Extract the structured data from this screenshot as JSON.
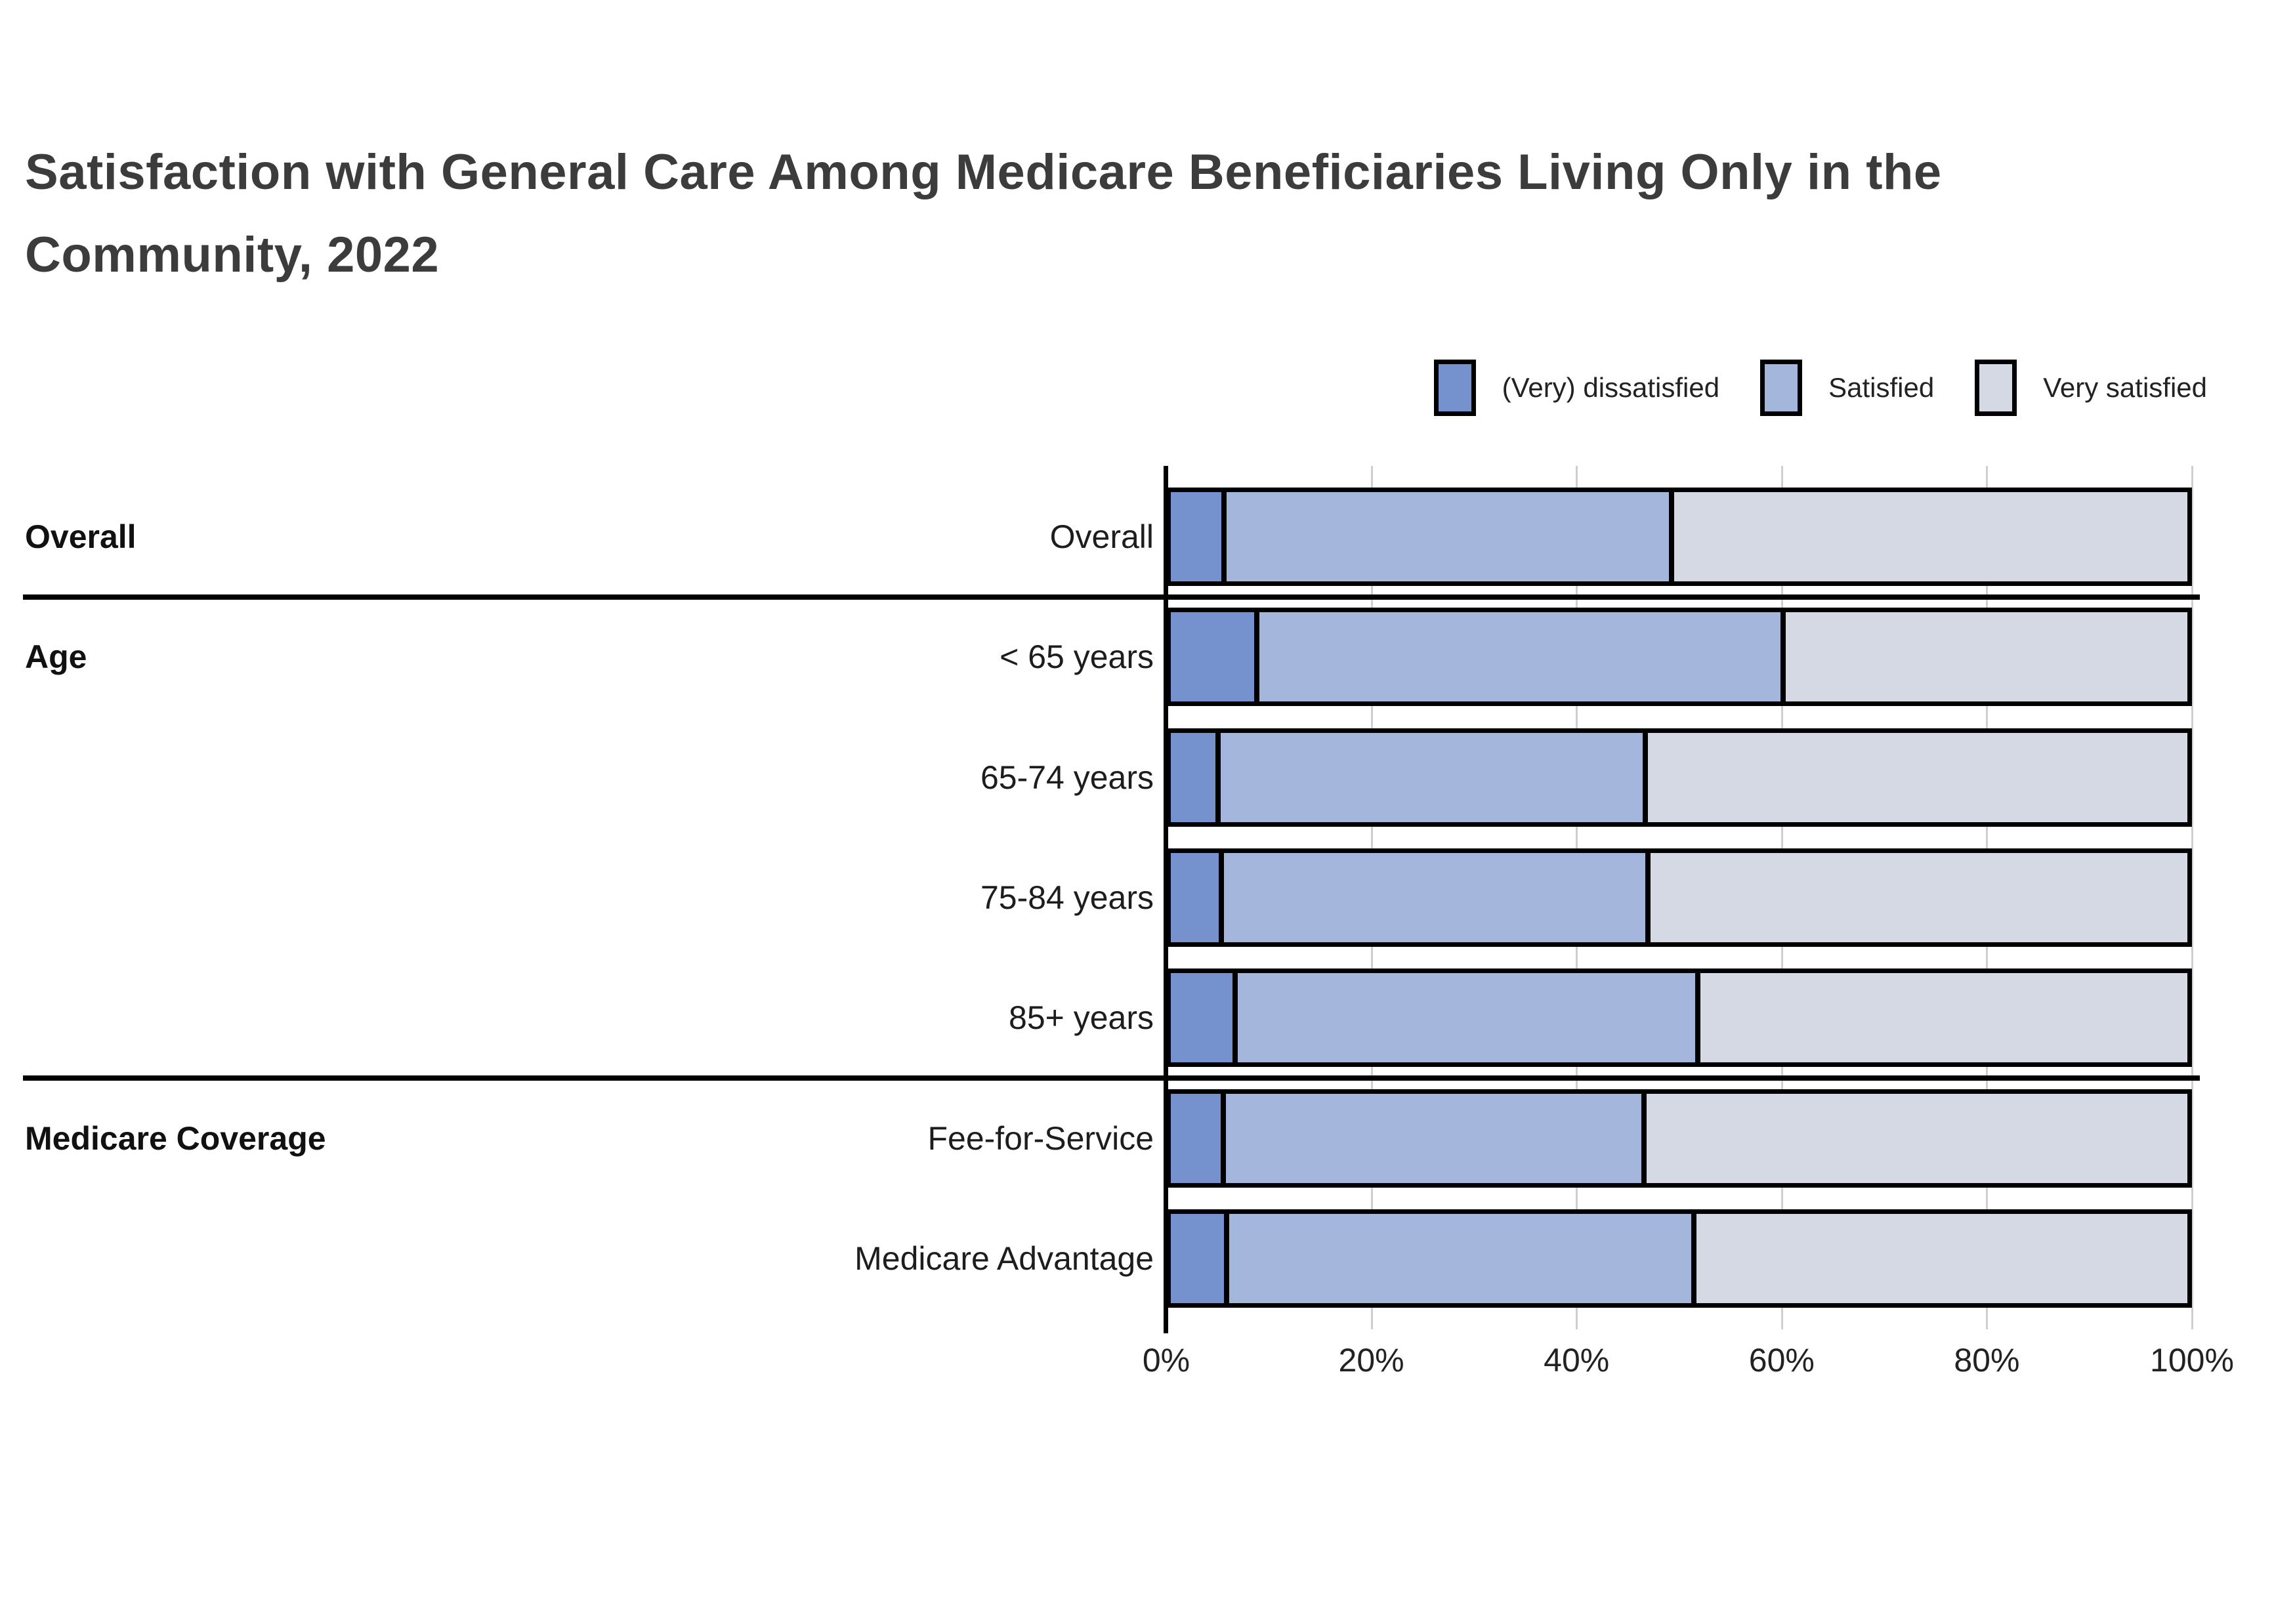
{
  "chart_data": {
    "type": "bar",
    "variant": "horizontal-stacked-100pct",
    "title": "Satisfaction with General Care Among Medicare Beneficiaries Living Only in the Community, 2022",
    "legend_position": "top-right",
    "legend": [
      {
        "label": "(Very) dissatisfied",
        "color": "#7592CF"
      },
      {
        "label": "Satisfied",
        "color": "#A4B6DB"
      },
      {
        "label": "Very satisfied",
        "color": "#D4D9E3"
      }
    ],
    "x_axis": {
      "min": 0,
      "max": 100,
      "tick_values": [
        0,
        20,
        40,
        60,
        80,
        100
      ],
      "tick_labels": [
        "0%",
        "20%",
        "40%",
        "60%",
        "80%",
        "100%"
      ],
      "grid": true
    },
    "series_names": [
      "(Very) dissatisfied",
      "Satisfied",
      "Very satisfied"
    ],
    "groups": [
      {
        "label": "Overall",
        "rows": [
          {
            "label": "Overall",
            "values": [
              5.0,
              44.0,
              51.0
            ]
          }
        ]
      },
      {
        "label": "Age",
        "rows": [
          {
            "label": "< 65 years",
            "values": [
              8.2,
              51.8,
              40.0
            ]
          },
          {
            "label": "65-74 years",
            "values": [
              4.4,
              42.0,
              53.6
            ]
          },
          {
            "label": "75-84 years",
            "values": [
              4.7,
              42.0,
              53.3
            ]
          },
          {
            "label": "85+ years",
            "values": [
              6.1,
              45.5,
              48.4
            ]
          }
        ]
      },
      {
        "label": "Medicare Coverage",
        "rows": [
          {
            "label": "Fee-for-Service",
            "values": [
              4.9,
              41.4,
              53.7
            ]
          },
          {
            "label": "Medicare Advantage",
            "values": [
              5.2,
              46.0,
              48.8
            ]
          }
        ]
      }
    ],
    "colors": {
      "bar_border": "#000000",
      "gridline": "#cfcfcf",
      "axis_line": "#000000",
      "title_text": "#3c3c3c",
      "label_text": "#1d1d1d",
      "background": "#ffffff"
    }
  }
}
